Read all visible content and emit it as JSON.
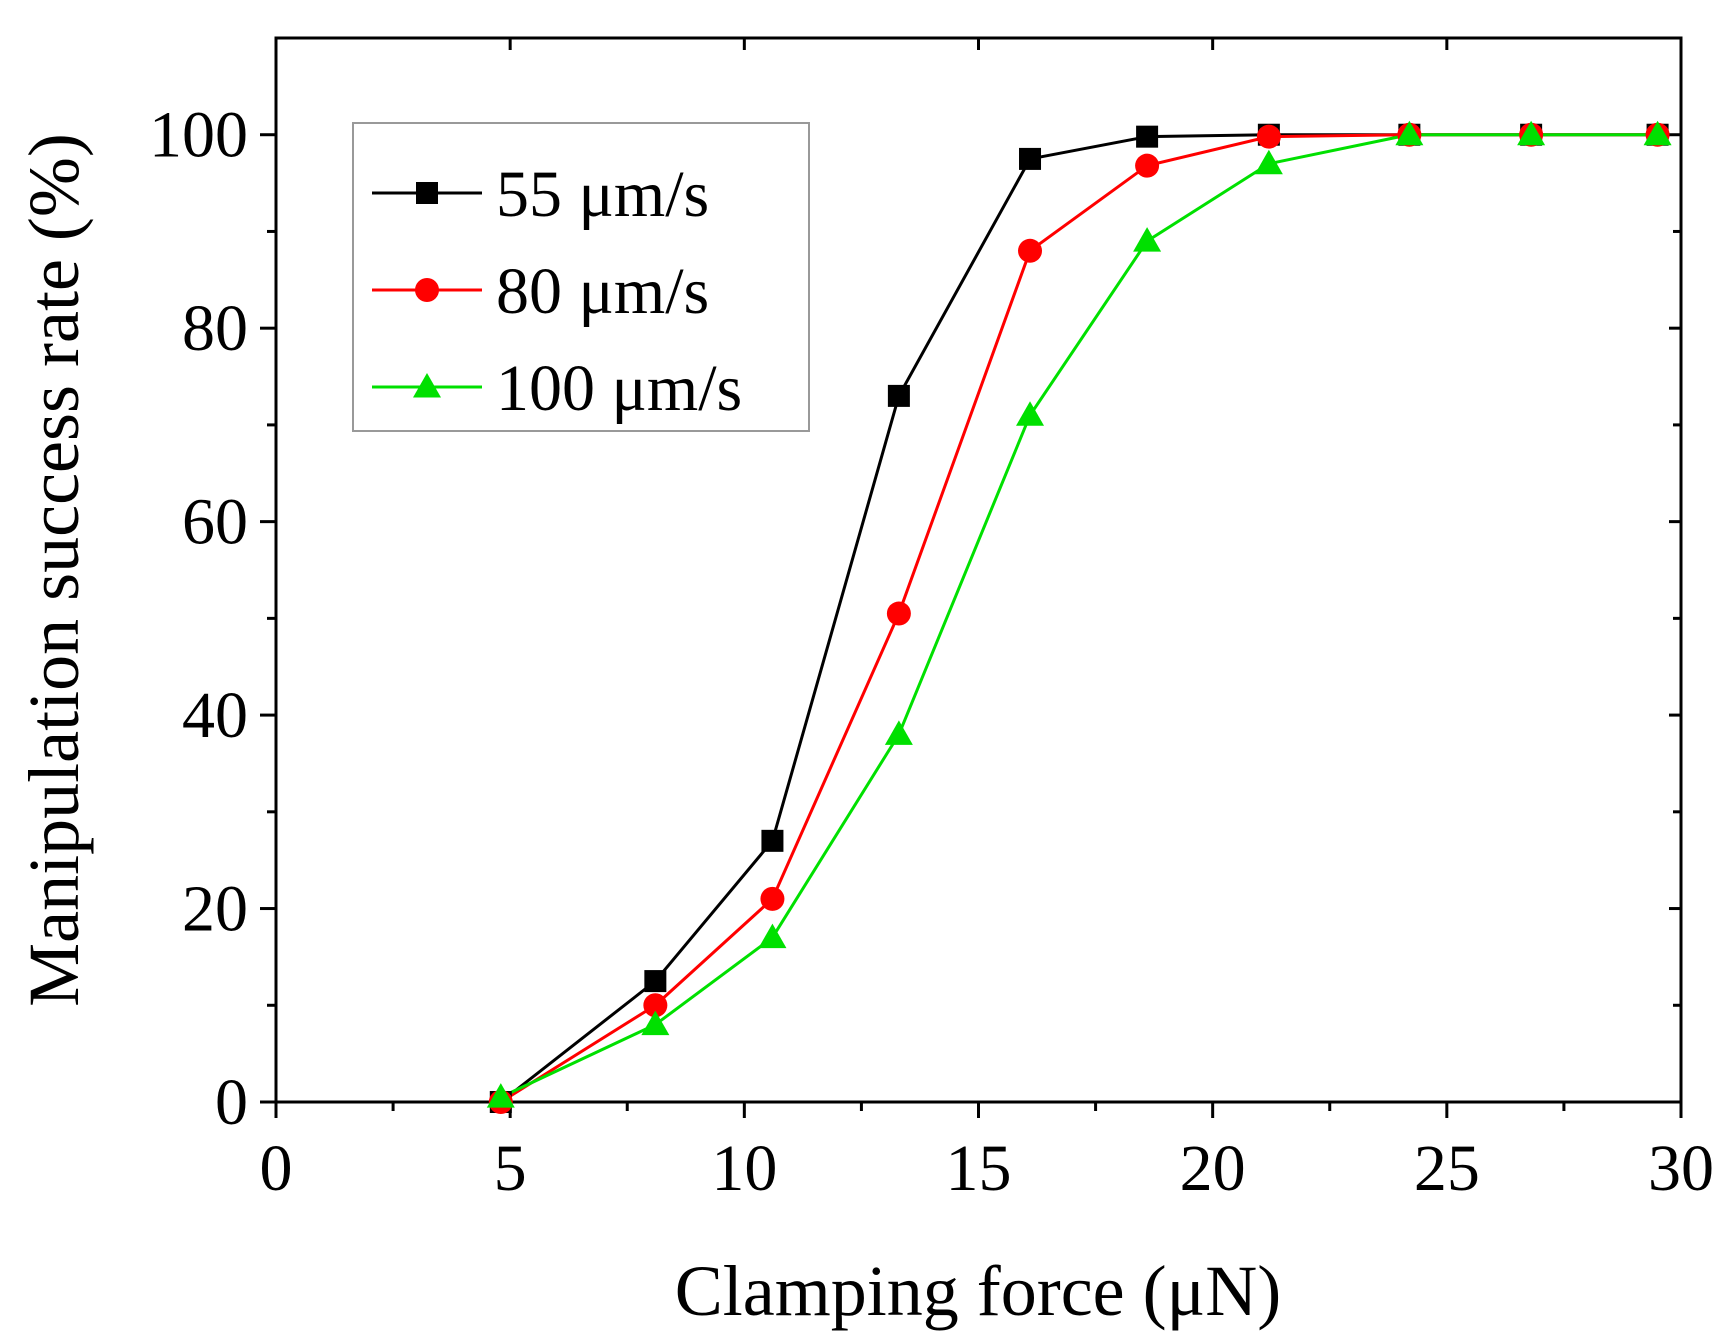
{
  "chart_data": {
    "type": "line",
    "title": "",
    "xlabel": "Clamping force (μN)",
    "ylabel": "Manipulation success rate (%)",
    "xlim": [
      0,
      30
    ],
    "ylim": [
      0,
      110
    ],
    "x_ticks": [
      0,
      5,
      10,
      15,
      20,
      25,
      30
    ],
    "x_tick_labels": [
      "0",
      "5",
      "10",
      "15",
      "20",
      "25",
      "30"
    ],
    "y_ticks": [
      0,
      20,
      40,
      60,
      80,
      100
    ],
    "y_tick_labels": [
      "0",
      "20",
      "40",
      "60",
      "80",
      "100"
    ],
    "grid": false,
    "legend_position": "top-left",
    "series": [
      {
        "name": "55 μm/s",
        "color": "#000000",
        "marker": "square",
        "x": [
          4.8,
          8.1,
          10.6,
          13.3,
          16.1,
          18.6,
          21.2,
          24.2,
          26.8,
          29.5
        ],
        "y": [
          0,
          12.5,
          27,
          73,
          97.5,
          99.8,
          100,
          100,
          100,
          100
        ]
      },
      {
        "name": "80 μm/s",
        "color": "#ff0000",
        "marker": "circle",
        "x": [
          4.8,
          8.1,
          10.6,
          13.3,
          16.1,
          18.6,
          21.2,
          24.2,
          26.8,
          29.5
        ],
        "y": [
          0,
          10,
          21,
          50.5,
          88,
          96.8,
          99.8,
          100,
          100,
          100
        ]
      },
      {
        "name": "100 μm/s",
        "color": "#00e000",
        "marker": "triangle",
        "x": [
          4.8,
          8.1,
          10.6,
          13.3,
          16.1,
          18.6,
          21.2,
          24.2,
          26.8,
          29.5
        ],
        "y": [
          0.5,
          8,
          17,
          38,
          71,
          89,
          97,
          100,
          100,
          100
        ]
      }
    ]
  }
}
